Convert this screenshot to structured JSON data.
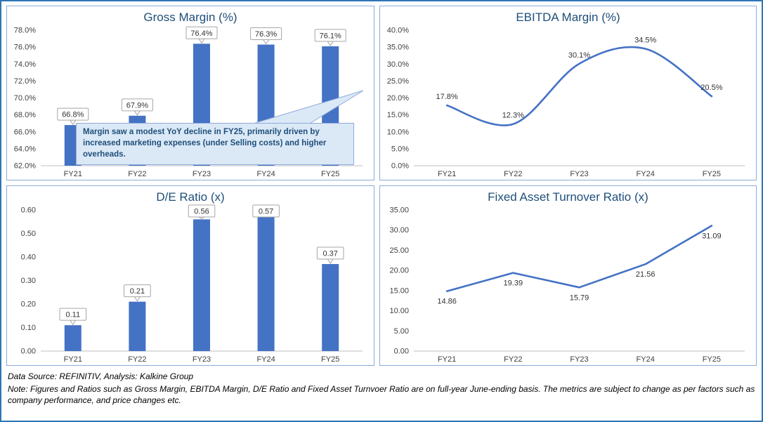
{
  "colors": {
    "accent": "#4472C4",
    "outer_border": "#2E75B6",
    "panel_border": "#8EAADB",
    "title_text": "#1F4E79",
    "axis_text": "#404040",
    "axis_line": "#BFBFBF",
    "label_box_border": "#A6A6A6",
    "label_text": "#333333",
    "annotation_fill": "#DBE9F7",
    "annotation_border": "#8EA9DB",
    "annotation_text": "#1F4E79"
  },
  "chart_data": [
    {
      "id": "gross-margin",
      "type": "bar",
      "title": "Gross Margin (%)",
      "categories": [
        "FY21",
        "FY22",
        "FY23",
        "FY24",
        "FY25"
      ],
      "values": [
        66.8,
        67.9,
        76.4,
        76.3,
        76.1
      ],
      "data_labels": [
        "66.8%",
        "67.9%",
        "76.4%",
        "76.3%",
        "76.1%"
      ],
      "ylim": [
        62,
        78
      ],
      "ytick_values": [
        62,
        64,
        66,
        68,
        70,
        72,
        74,
        76,
        78
      ],
      "ytick_labels": [
        "62.0%",
        "64.0%",
        "66.0%",
        "68.0%",
        "70.0%",
        "72.0%",
        "74.0%",
        "76.0%",
        "78.0%"
      ],
      "grid": false,
      "legend": "none",
      "annotation": "Margin saw a modest YoY decline in FY25, primarily driven by increased marketing expenses (under Selling costs) and higher overheads."
    },
    {
      "id": "ebitda-margin",
      "type": "line",
      "title": "EBITDA Margin (%)",
      "categories": [
        "FY21",
        "FY22",
        "FY23",
        "FY24",
        "FY25"
      ],
      "values": [
        17.8,
        12.3,
        30.1,
        34.5,
        20.5
      ],
      "data_labels": [
        "17.8%",
        "12.3%",
        "30.1%",
        "34.5%",
        "20.5%"
      ],
      "ylim": [
        0,
        40
      ],
      "ytick_values": [
        0,
        5,
        10,
        15,
        20,
        25,
        30,
        35,
        40
      ],
      "ytick_labels": [
        "0.0%",
        "5.0%",
        "10.0%",
        "15.0%",
        "20.0%",
        "25.0%",
        "30.0%",
        "35.0%",
        "40.0%"
      ],
      "smooth": true,
      "label_position": "above",
      "grid": false,
      "legend": "none"
    },
    {
      "id": "de-ratio",
      "type": "bar",
      "title": "D/E Ratio (x)",
      "categories": [
        "FY21",
        "FY22",
        "FY23",
        "FY24",
        "FY25"
      ],
      "values": [
        0.11,
        0.21,
        0.56,
        0.57,
        0.37
      ],
      "data_labels": [
        "0.11",
        "0.21",
        "0.56",
        "0.57",
        "0.37"
      ],
      "ylim": [
        0,
        0.6
      ],
      "ytick_values": [
        0,
        0.1,
        0.2,
        0.3,
        0.4,
        0.5,
        0.6
      ],
      "ytick_labels": [
        "0.00",
        "0.10",
        "0.20",
        "0.30",
        "0.40",
        "0.50",
        "0.60"
      ],
      "grid": false,
      "legend": "none"
    },
    {
      "id": "fixed-asset-turnover",
      "type": "line",
      "title": "Fixed Asset Turnover Ratio (x)",
      "categories": [
        "FY21",
        "FY22",
        "FY23",
        "FY24",
        "FY25"
      ],
      "values": [
        14.86,
        19.39,
        15.79,
        21.56,
        31.09
      ],
      "data_labels": [
        "14.86",
        "19.39",
        "15.79",
        "21.56",
        "31.09"
      ],
      "ylim": [
        0,
        35
      ],
      "ytick_values": [
        0,
        5,
        10,
        15,
        20,
        25,
        30,
        35
      ],
      "ytick_labels": [
        "0.00",
        "5.00",
        "10.00",
        "15.00",
        "20.00",
        "25.00",
        "30.00",
        "35.00"
      ],
      "smooth": false,
      "label_position": "below",
      "grid": false,
      "legend": "none"
    }
  ],
  "footer": {
    "source_line": "Data Source: REFINITIV, Analysis: Kalkine Group",
    "note_line": "Note: Figures and Ratios such as Gross Margin, EBITDA Margin, D/E Ratio and Fixed Asset Turnvoer Ratio are on full-year June-ending basis. The metrics are subject to change as per factors such as company performance, and price changes etc."
  }
}
